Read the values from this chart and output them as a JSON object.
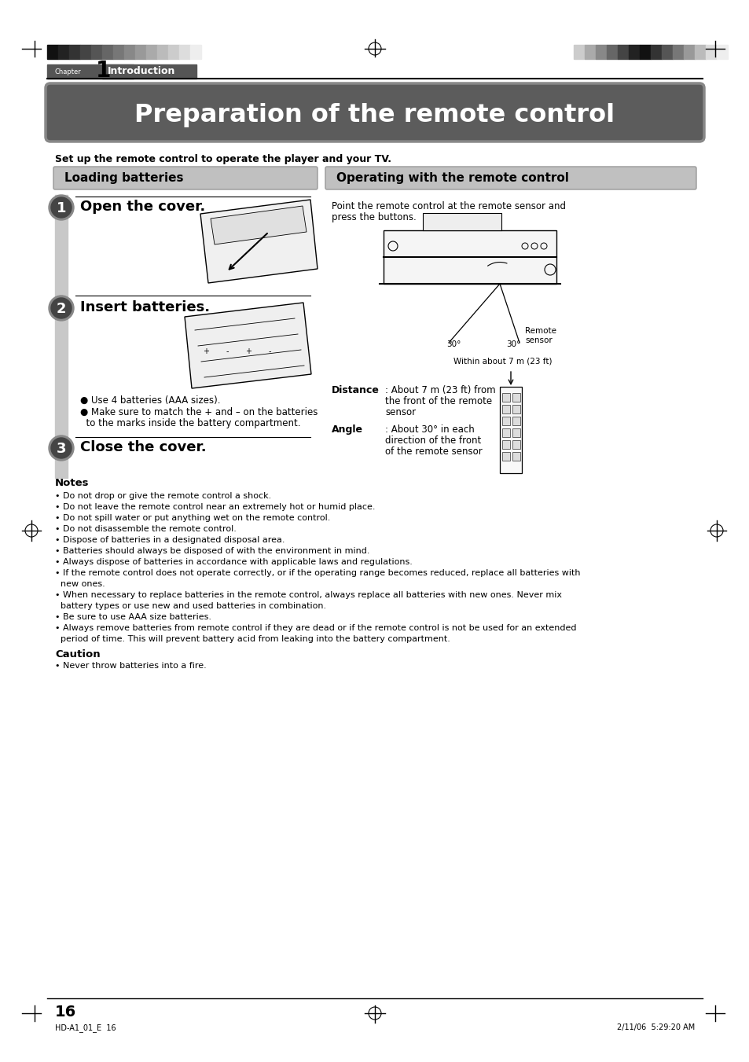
{
  "page_title": "Preparation of the remote control",
  "subtitle": "Set up the remote control to operate the player and your TV.",
  "section_left": "Loading batteries",
  "section_right": "Operating with the remote control",
  "step1_title": "Open the cover.",
  "step2_title": "Insert batteries.",
  "step3_title": "Close the cover.",
  "bullet1": "● Use 4 batteries (AAA sizes).",
  "bullet2_1": "● Make sure to match the + and – on the batteries",
  "bullet2_2": "  to the marks inside the battery compartment.",
  "op_desc1": "Point the remote control at the remote sensor and",
  "op_desc2": "press the buttons.",
  "distance_label": "Distance",
  "distance_text1": ": About 7 m (23 ft) from",
  "distance_text2": "the front of the remote",
  "distance_text3": "sensor",
  "angle_label": "Angle",
  "angle_text1": ": About 30° in each",
  "angle_text2": "direction of the front",
  "angle_text3": "of the remote sensor",
  "within_text": "Within about 7 m (23 ft)",
  "angle_label_30": "30°",
  "remote_sensor_label": "Remote\nsensor",
  "notes_title": "Notes",
  "notes": [
    "Do not drop or give the remote control a shock.",
    "Do not leave the remote control near an extremely hot or humid place.",
    "Do not spill water or put anything wet on the remote control.",
    "Do not disassemble the remote control.",
    "Dispose of batteries in a designated disposal area.",
    "Batteries should always be disposed of with the environment in mind.",
    "Always dispose of batteries in accordance with applicable laws and regulations.",
    "If the remote control does not operate correctly, or if the operating range becomes reduced, replace all batteries with",
    "  new ones.",
    "When necessary to replace batteries in the remote control, always replace all batteries with new ones. Never mix",
    "  battery types or use new and used batteries in combination.",
    "Be sure to use AAA size batteries.",
    "Always remove batteries from remote control if they are dead or if the remote control is not be used for an extended",
    "  period of time. This will prevent battery acid from leaking into the battery compartment."
  ],
  "caution_title": "Caution",
  "caution_text": "Never throw batteries into a fire.",
  "chapter_label": "Chapter",
  "chapter_num": "1",
  "chapter_name": "Introduction",
  "page_num": "16",
  "footer_left": "HD-A1_01_E  16",
  "footer_right": "2/11/06  5:29:20 AM",
  "bg_color": "#ffffff",
  "bar_colors_left": [
    "#111111",
    "#222222",
    "#333333",
    "#444444",
    "#555555",
    "#666666",
    "#777777",
    "#888888",
    "#999999",
    "#aaaaaa",
    "#bbbbbb",
    "#cccccc",
    "#dddddd",
    "#eeeeee"
  ],
  "bar_colors_right": [
    "#cccccc",
    "#aaaaaa",
    "#888888",
    "#666666",
    "#444444",
    "#222222",
    "#111111",
    "#333333",
    "#555555",
    "#777777",
    "#999999",
    "#bbbbbb",
    "#dddddd",
    "#eeeeee"
  ]
}
